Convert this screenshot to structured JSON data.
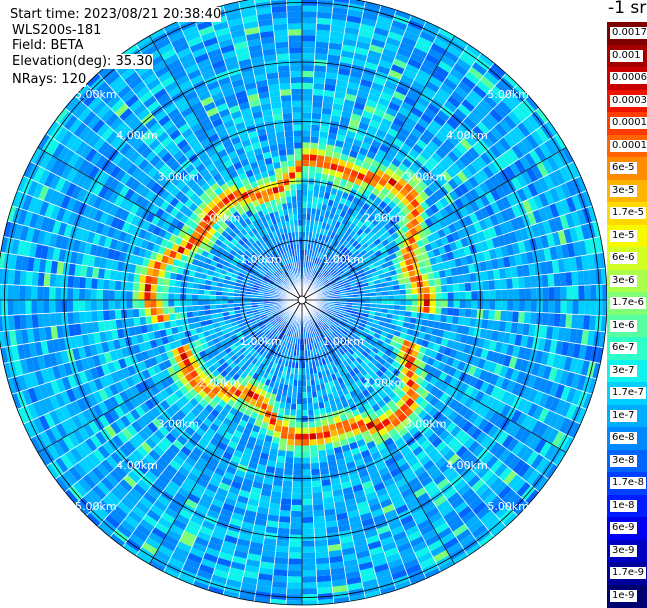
{
  "header": {
    "start_time": "Start time: 2023/08/21 20:38:40",
    "instrument": "WLS200s-181",
    "field": "Field: BETA",
    "elevation": "Elevation(deg): 35.30",
    "nrays": "NRays: 120"
  },
  "colorbar": {
    "unit_label": "-1 sr",
    "ticks": [
      "0.0017",
      "0.001",
      "0.0006",
      "0.0003",
      "0.00017",
      "0.0001",
      "6e-5",
      "3e-5",
      "1.7e-5",
      "1e-5",
      "6e-6",
      "3e-6",
      "1.7e-6",
      "1e-6",
      "6e-7",
      "3e-7",
      "1.7e-7",
      "1e-7",
      "6e-8",
      "3e-8",
      "1.7e-8",
      "1e-8",
      "6e-9",
      "3e-9",
      "1.7e-9",
      "1e-9"
    ],
    "colors": [
      "#7f0000",
      "#a50000",
      "#c80000",
      "#ee1400",
      "#ff3c00",
      "#ff6400",
      "#ff8c00",
      "#ffb400",
      "#ffd800",
      "#f6f900",
      "#d2ff24",
      "#aaff4c",
      "#80ff76",
      "#58ffa0",
      "#2effc8",
      "#0ef4ec",
      "#00d0ff",
      "#00acff",
      "#0088ff",
      "#0064ff",
      "#0040ff",
      "#001cff",
      "#0000f0",
      "#0000c4",
      "#00009a",
      "#000070"
    ]
  },
  "chart_data": {
    "type": "heatmap",
    "projection": "polar (plan position indicator)",
    "field": "BETA",
    "elevation_deg": 35.3,
    "n_rays": 120,
    "range_ring_labels": [
      "1.00km",
      "2.00km",
      "3.00km",
      "4.00km",
      "5.00km"
    ],
    "range_rings_km": [
      1,
      2,
      3,
      4,
      5
    ],
    "color_scale": "log",
    "scale_min": 1e-09,
    "scale_max": 0.0017,
    "description_values": {
      "background_beta_approx": 1e-07,
      "near_center_beta_approx": 3e-08,
      "high_ring_radius_km_approx": 2.2,
      "high_ring_beta_approx": 0.0003
    }
  }
}
